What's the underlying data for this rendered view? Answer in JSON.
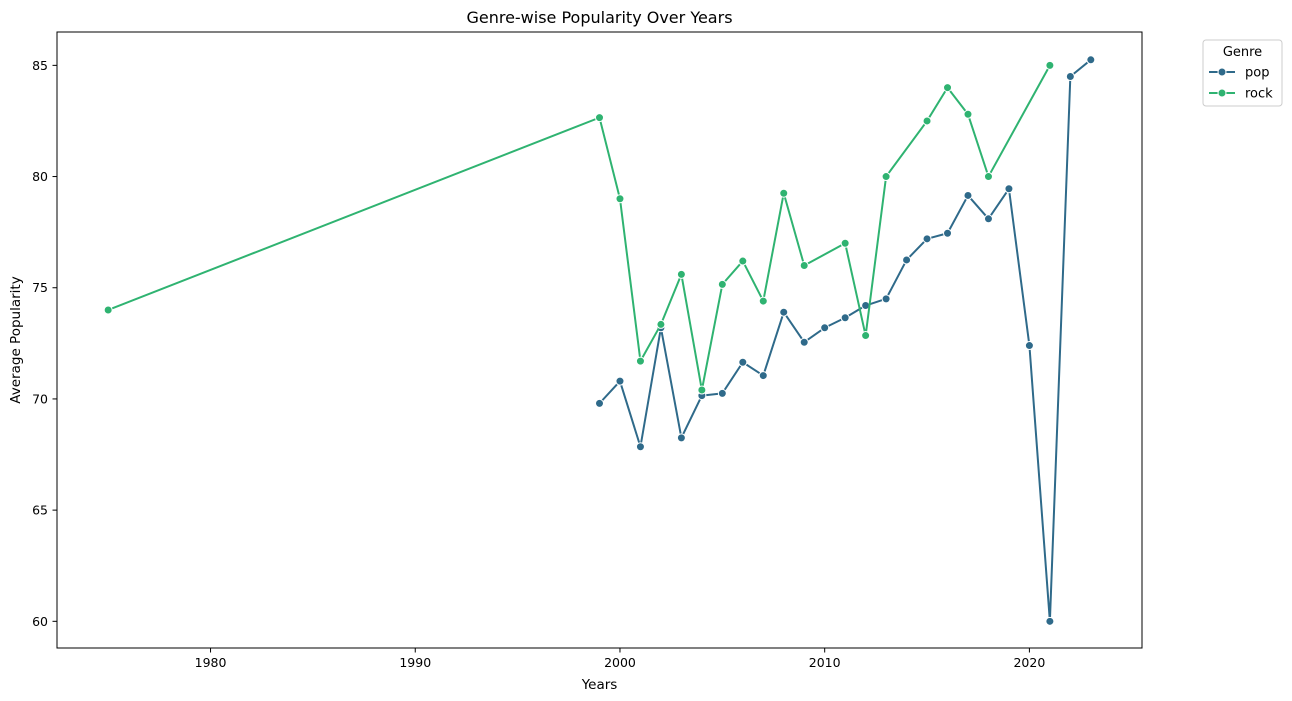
{
  "chart_data": {
    "type": "line",
    "title": "Genre-wise Popularity Over Years",
    "xlabel": "Years",
    "ylabel": "Average Popularity",
    "xlim": [
      1972.5,
      2025.5
    ],
    "ylim": [
      58.8,
      86.5
    ],
    "xticks": [
      1980,
      1990,
      2000,
      2010,
      2020
    ],
    "yticks": [
      60,
      65,
      70,
      75,
      80,
      85
    ],
    "grid": false,
    "legend": {
      "title": "Genre",
      "placement": "outside-top-right"
    },
    "series": [
      {
        "name": "pop",
        "color": "#2f6a8a",
        "marker": "circle",
        "x": [
          1999,
          2000,
          2001,
          2002,
          2003,
          2004,
          2005,
          2006,
          2007,
          2008,
          2009,
          2010,
          2011,
          2012,
          2013,
          2014,
          2015,
          2016,
          2017,
          2018,
          2019,
          2020,
          2021,
          2022,
          2023
        ],
        "y": [
          69.8,
          70.8,
          67.85,
          73.2,
          68.25,
          70.15,
          70.25,
          71.65,
          71.05,
          73.9,
          72.55,
          73.2,
          73.65,
          74.2,
          74.5,
          76.25,
          77.2,
          77.45,
          79.15,
          78.1,
          79.45,
          72.4,
          60.0,
          84.5,
          85.25
        ]
      },
      {
        "name": "rock",
        "color": "#2fb371",
        "marker": "circle",
        "x": [
          1975,
          1999,
          2000,
          2001,
          2002,
          2003,
          2004,
          2005,
          2006,
          2007,
          2008,
          2009,
          2011,
          2012,
          2013,
          2015,
          2016,
          2017,
          2018,
          2021
        ],
        "y": [
          74.0,
          82.65,
          79.0,
          71.7,
          73.35,
          75.6,
          70.4,
          75.15,
          76.2,
          74.4,
          79.25,
          76.0,
          77.0,
          72.85,
          80.0,
          82.5,
          84.0,
          82.8,
          80.0,
          85.0
        ]
      }
    ]
  }
}
